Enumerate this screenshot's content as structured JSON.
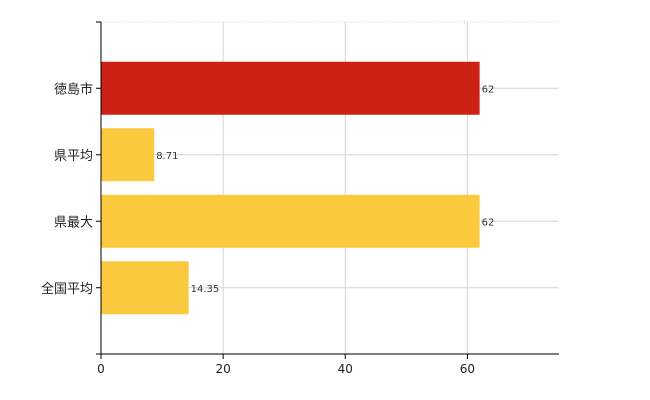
{
  "chart_data": {
    "type": "bar",
    "orientation": "horizontal",
    "categories": [
      "徳島市",
      "県平均",
      "県最大",
      "全国平均"
    ],
    "values": [
      62,
      8.71,
      62,
      14.35
    ],
    "value_labels": [
      "62",
      "8.71",
      "62",
      "14.35"
    ],
    "bar_colors": [
      "#cc2114",
      "#fbc93d",
      "#fbc93d",
      "#fbc93d"
    ],
    "xlim": [
      0,
      75
    ],
    "xticks": [
      0,
      20,
      40,
      60
    ],
    "title": "",
    "xlabel": "",
    "ylabel": "",
    "grid": true,
    "legend": "none"
  }
}
